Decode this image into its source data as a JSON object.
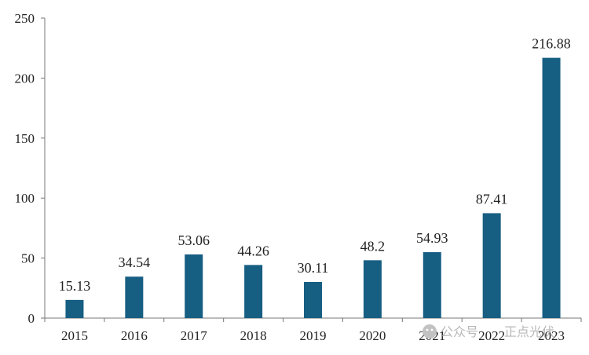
{
  "chart_data": {
    "type": "bar",
    "categories": [
      "2015",
      "2016",
      "2017",
      "2018",
      "2019",
      "2020",
      "2021",
      "2022",
      "2023"
    ],
    "values": [
      15.13,
      34.54,
      53.06,
      44.26,
      30.11,
      48.2,
      54.93,
      87.41,
      216.88
    ],
    "value_labels": [
      "15.13",
      "34.54",
      "53.06",
      "44.26",
      "30.11",
      "48.2",
      "54.93",
      "87.41",
      "216.88"
    ],
    "yticks": [
      "0",
      "50",
      "100",
      "150",
      "200",
      "250"
    ],
    "ylim": [
      0,
      250
    ],
    "bar_color": "#175e83",
    "grid": false,
    "title": "",
    "xlabel": "",
    "ylabel": ""
  },
  "watermark": {
    "text_left": "公众号",
    "text_right": "正点光伏",
    "icon": "wechat-icon",
    "color": "#b8b8b8"
  }
}
